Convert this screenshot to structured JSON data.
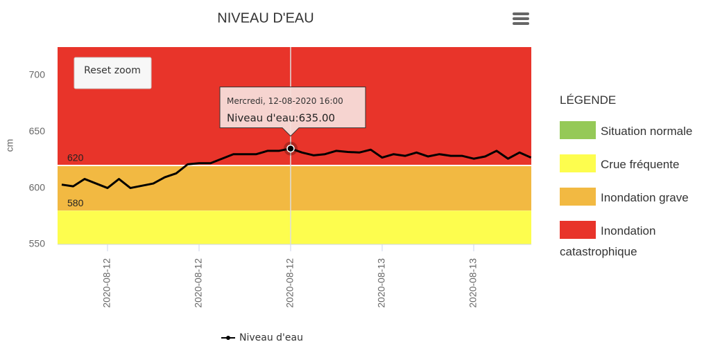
{
  "chart_data": {
    "type": "line",
    "title": "NIVEAU D'EAU",
    "y_axis_title": "cm",
    "reset_button": "Reset zoom",
    "ylim": [
      550,
      725
    ],
    "yticks": [
      550,
      600,
      650,
      700
    ],
    "categories": [
      null,
      null,
      null,
      null,
      "2020-08-12",
      null,
      null,
      null,
      null,
      null,
      null,
      null,
      "2020-08-12",
      null,
      null,
      null,
      null,
      null,
      null,
      null,
      "2020-08-12",
      null,
      null,
      null,
      null,
      null,
      null,
      null,
      "2020-08-13",
      null,
      null,
      null,
      null,
      null,
      null,
      null,
      "2020-08-13",
      null,
      null,
      null,
      null,
      null
    ],
    "series": [
      {
        "name": "Niveau d'eau",
        "color": "#000000",
        "values": [
          603,
          601.5,
          608,
          604,
          600,
          608,
          600,
          602,
          604,
          609.5,
          613,
          621,
          622,
          622,
          626,
          630,
          630,
          630,
          633,
          633,
          635,
          631.5,
          629,
          630,
          633,
          632,
          631.5,
          634,
          627,
          630,
          628.5,
          631.5,
          628,
          630,
          628.5,
          628.5,
          626,
          628,
          633,
          626,
          631.5,
          627
        ]
      }
    ],
    "plot_bands": [
      {
        "from": 550,
        "to": 580,
        "color": "#fdfd4e"
      },
      {
        "from": 580,
        "to": 620,
        "color": "#f2b942"
      },
      {
        "from": 620,
        "to": 725,
        "color": "#e8342a"
      }
    ],
    "plot_lines": [
      {
        "value": 620,
        "label": "620"
      },
      {
        "value": 580,
        "label": "580"
      }
    ],
    "tooltip": {
      "header": "Mercredi, 12-08-2020 16:00",
      "series_label": "Niveau d'eau:",
      "value": 635,
      "value_label": "635.00"
    },
    "side_legend": {
      "title": "LÉGENDE",
      "items": [
        {
          "label": "Situation normale",
          "color": "#95c957"
        },
        {
          "label": "Crue fréquente",
          "color": "#fdfd4e"
        },
        {
          "label": "Inondation grave",
          "color": "#f2b942"
        },
        {
          "label": "Inondation catastrophique",
          "color": "#e8342a"
        }
      ]
    }
  }
}
